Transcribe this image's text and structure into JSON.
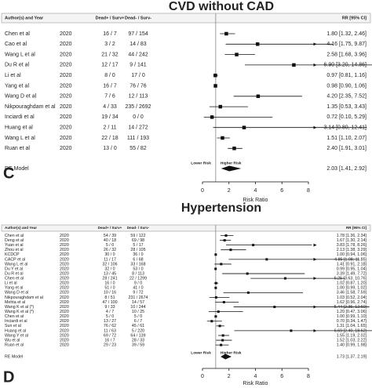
{
  "chart_data": [
    {
      "type": "forest",
      "title": "CVD without CAD",
      "panel_label": "C",
      "columns": [
        "Author(s) and Year",
        "Dead+ / Surv+",
        "Dead- / Surv-",
        "RR [95% CI]"
      ],
      "rows": [
        {
          "study": "Chen et al",
          "year": "2020",
          "dead_pos": "16 / 7",
          "dead_neg": "97 / 154",
          "rr": 1.8,
          "lo": 1.32,
          "hi": 2.46,
          "ci_label": "1.80 [1.32, 2.46]"
        },
        {
          "study": "Cao et al",
          "year": "2020",
          "dead_pos": "3 / 2",
          "dead_neg": "14 / 83",
          "rr": 4.16,
          "lo": 1.75,
          "hi": 9.87,
          "ci_label": "4.16 [1.75, 9.87]"
        },
        {
          "study": "Wang L et al",
          "year": "2020",
          "dead_pos": "21 / 32",
          "dead_neg": "44 / 242",
          "rr": 2.58,
          "lo": 1.68,
          "hi": 3.96,
          "ci_label": "2.58 [1.68, 3.96]"
        },
        {
          "study": "Du R et al",
          "year": "2020",
          "dead_pos": "12 / 17",
          "dead_neg": "9 / 141",
          "rr": 6.9,
          "lo": 3.2,
          "hi": 14.86,
          "ci_label": "6.90 [3.20, 14.86]"
        },
        {
          "study": "Li et al",
          "year": "2020",
          "dead_pos": "8 / 0",
          "dead_neg": "17 / 0",
          "rr": 0.97,
          "lo": 0.81,
          "hi": 1.16,
          "ci_label": "0.97 [0.81, 1.16]"
        },
        {
          "study": "Yang et al",
          "year": "2020",
          "dead_pos": "16 / 7",
          "dead_neg": "76 / 76",
          "rr": 0.98,
          "lo": 0.9,
          "hi": 1.06,
          "ci_label": "0.98 [0.90, 1.06]"
        },
        {
          "study": "Wang D et al",
          "year": "2020",
          "dead_pos": "7 / 6",
          "dead_neg": "12 / 113",
          "rr": 4.2,
          "lo": 2.35,
          "hi": 7.52,
          "ci_label": "4.20 [2.35, 7.52]"
        },
        {
          "study": "Nikpouraghdam et al",
          "year": "2020",
          "dead_pos": "4 / 33",
          "dead_neg": "235 / 2692",
          "rr": 1.35,
          "lo": 0.53,
          "hi": 3.43,
          "ci_label": "1.35 [0.53, 3.43]"
        },
        {
          "study": "Inciardi et al",
          "year": "2020",
          "dead_pos": "19 / 34",
          "dead_neg": "0 / 0",
          "rr": 0.72,
          "lo": 0.1,
          "hi": 5.29,
          "ci_label": "0.72 [0.10, 5.29]"
        },
        {
          "study": "Huang et al",
          "year": "2020",
          "dead_pos": "2 / 11",
          "dead_neg": "14 / 272",
          "rr": 3.14,
          "lo": 0.8,
          "hi": 12.41,
          "ci_label": "3.14 [0.80, 12.41]"
        },
        {
          "study": "Wang L et al",
          "year": "2020",
          "dead_pos": "22 / 18",
          "dead_neg": "111 / 193",
          "rr": 1.51,
          "lo": 1.1,
          "hi": 2.07,
          "ci_label": "1.51 [1.10, 2.07]"
        },
        {
          "study": "Ruan et al",
          "year": "2020",
          "dead_pos": "13 / 0",
          "dead_neg": "55 / 82",
          "rr": 2.4,
          "lo": 1.91,
          "hi": 3.01,
          "ci_label": "2.40 [1.91, 3.01]"
        }
      ],
      "summary": {
        "label": "RE Model",
        "rr": 2.03,
        "lo": 1.41,
        "hi": 2.92,
        "ci_label": "2.03 [1.41, 2.92]"
      },
      "lower_label": "Lower Risk",
      "higher_label": "Higher Risk",
      "xlabel": "Risk Ratio",
      "xlim": [
        0,
        8
      ],
      "xticks": [
        0,
        2,
        4,
        6,
        8
      ],
      "reference": 1
    },
    {
      "type": "forest",
      "title": "Hypertension",
      "panel_label": "D",
      "columns": [
        "Author(s) and Year",
        "Dead+ / Surv+",
        "Dead- / Surv-",
        "RR [95% CI]"
      ],
      "rows": [
        {
          "study": "Chen et al",
          "year": "2020",
          "dead_pos": "54 / 39",
          "dead_neg": "59 / 122",
          "rr": 1.78,
          "lo": 1.36,
          "hi": 2.34,
          "ci_label": "1.78 [1.36, 2.34]"
        },
        {
          "study": "Deng et al",
          "year": "2020",
          "dead_pos": "40 / 18",
          "dead_neg": "69 / 98",
          "rr": 1.67,
          "lo": 1.3,
          "hi": 2.14,
          "ci_label": "1.67 [1.30, 2.14]"
        },
        {
          "study": "Yuan et al",
          "year": "2020",
          "dead_pos": "5 / 0",
          "dead_neg": "5 / 17",
          "rr": 3.83,
          "lo": 1.78,
          "hi": 8.26,
          "ci_label": "3.83 [1.78, 8.26]"
        },
        {
          "study": "Zhou et al",
          "year": "2020",
          "dead_pos": "26 / 32",
          "dead_neg": "28 / 105",
          "rr": 2.13,
          "lo": 1.38,
          "hi": 3.29,
          "ci_label": "2.13 [1.38, 3.29]"
        },
        {
          "study": "KCDCP",
          "year": "2020",
          "dead_pos": "30 / 0",
          "dead_neg": "36 / 0",
          "rr": 1.0,
          "lo": 0.94,
          "hi": 1.06,
          "ci_label": "1.00 [0.94, 1.06]"
        },
        {
          "study": "CACP et al",
          "year": "2020",
          "dead_pos": "11 / 17",
          "dead_neg": "6 / 68",
          "rr": 4.85,
          "lo": 1.98,
          "hi": 11.85,
          "ci_label": "4.85 [1.98, 11.85]"
        },
        {
          "study": "Wang L et al",
          "year": "2020",
          "dead_pos": "32 / 106",
          "dead_neg": "33 / 168",
          "rr": 1.41,
          "lo": 0.91,
          "hi": 2.18,
          "ci_label": "1.41 [0.91, 2.18]"
        },
        {
          "study": "Du Y et al",
          "year": "2020",
          "dead_pos": "32 / 0",
          "dead_neg": "53 / 0",
          "rr": 0.99,
          "lo": 0.95,
          "hi": 1.04,
          "ci_label": "0.99 [0.95, 1.04]"
        },
        {
          "study": "Du R et al",
          "year": "2020",
          "dead_pos": "13 / 45",
          "dead_neg": "8 / 113",
          "rr": 3.39,
          "lo": 1.49,
          "hi": 7.72,
          "ci_label": "3.39 [1.49, 7.72]"
        },
        {
          "study": "Chen et al",
          "year": "2020",
          "dead_pos": "28 / 241",
          "dead_neg": "22 / 1299",
          "rr": 6.25,
          "lo": 3.63,
          "hi": 10.76,
          "ci_label": "6.25 [3.63, 10.76]"
        },
        {
          "study": "Li et al",
          "year": "2020",
          "dead_pos": "16 / 0",
          "dead_neg": "9 / 0",
          "rr": 1.02,
          "lo": 0.87,
          "hi": 1.2,
          "ci_label": "1.02 [0.87, 1.20]"
        },
        {
          "study": "Yang et al",
          "year": "2020",
          "dead_pos": "51 / 0",
          "dead_neg": "41 / 0",
          "rr": 1.0,
          "lo": 0.99,
          "hi": 1.02,
          "ci_label": "1.00 [0.99, 1.02]"
        },
        {
          "study": "Wang D et al",
          "year": "2020",
          "dead_pos": "10 / 16",
          "dead_neg": "9 / 72",
          "rr": 3.46,
          "lo": 1.58,
          "hi": 7.59,
          "ci_label": "3.46 [1.58, 7.59]"
        },
        {
          "study": "Nikpouraghdam et al",
          "year": "2020",
          "dead_pos": "8 / 51",
          "dead_neg": "231 / 2674",
          "rr": 1.03,
          "lo": 0.52,
          "hi": 2.04,
          "ci_label": "1.03 [0.52, 2.04]"
        },
        {
          "study": "Mehta et al",
          "year": "2020",
          "dead_pos": "47 / 100",
          "dead_neg": "14 / 57",
          "rr": 1.62,
          "lo": 0.96,
          "hi": 2.74,
          "ci_label": "1.62 [0.96, 2.74]"
        },
        {
          "study": "Wang K et al (*)",
          "year": "2020",
          "dead_pos": "9 / 33",
          "dead_neg": "10 / 244",
          "rr": 5.44,
          "lo": 2.35,
          "hi": 12.6,
          "ci_label": "5.44 [2.35, 12.60]"
        },
        {
          "study": "Wang K et al (*)",
          "year": "2020",
          "dead_pos": "4 / 7",
          "dead_neg": "10 / 25",
          "rr": 1.2,
          "lo": 0.47,
          "hi": 3.06,
          "ci_label": "1.20 [0.47, 3.06]"
        },
        {
          "study": "Chen et al",
          "year": "2020",
          "dead_pos": "5 / 0",
          "dead_neg": "5 / 0",
          "rr": 1.0,
          "lo": 0.99,
          "hi": 1.1,
          "ci_label": "1.00 [0.99, 1.10]"
        },
        {
          "study": "Inciardi et al",
          "year": "2020",
          "dead_pos": "13 / 27",
          "dead_neg": "6 / 7",
          "rr": 0.7,
          "lo": 0.34,
          "hi": 1.47,
          "ci_label": "0.70 [0.34, 1.47]"
        },
        {
          "study": "Sun et al",
          "year": "2020",
          "dead_pos": "76 / 62",
          "dead_neg": "45 / 61",
          "rr": 1.31,
          "lo": 1.04,
          "hi": 1.65,
          "ci_label": "1.31 [1.04, 1.65]"
        },
        {
          "study": "Huang et al",
          "year": "2020",
          "dead_pos": "11 / 63",
          "dead_neg": "5 / 220",
          "rr": 6.69,
          "lo": 2.4,
          "hi": 18.62,
          "ci_label": "6.69 [2.40, 18.62]"
        },
        {
          "study": "Wang Y et al",
          "year": "2020",
          "dead_pos": "69 / 72",
          "dead_neg": "64 / 139",
          "rr": 1.55,
          "lo": 1.19,
          "hi": 2.02,
          "ci_label": "1.55 [1.19, 2.02]"
        },
        {
          "study": "Wu et al",
          "year": "2020",
          "dead_pos": "16 / 7",
          "dead_neg": "28 / 33",
          "rr": 1.52,
          "lo": 1.03,
          "hi": 2.22,
          "ci_label": "1.52 [1.03, 2.22]"
        },
        {
          "study": "Ruan et al",
          "year": "2020",
          "dead_pos": "29 / 23",
          "dead_neg": "39 / 59",
          "rr": 1.4,
          "lo": 0.99,
          "hi": 1.98,
          "ci_label": "1.40 [0.99, 1.98]"
        }
      ],
      "summary": {
        "label": "RE Model",
        "rr": 1.73,
        "lo": 1.37,
        "hi": 2.19,
        "ci_label": "1.73 [1.37, 2.19]"
      },
      "lower_label": "Lower Risk",
      "higher_label": "Higher Risk",
      "xlabel": "Risk Ratio",
      "xlim": [
        0,
        8
      ],
      "xticks": [
        0,
        2,
        4,
        6,
        8
      ],
      "reference": 1
    }
  ]
}
